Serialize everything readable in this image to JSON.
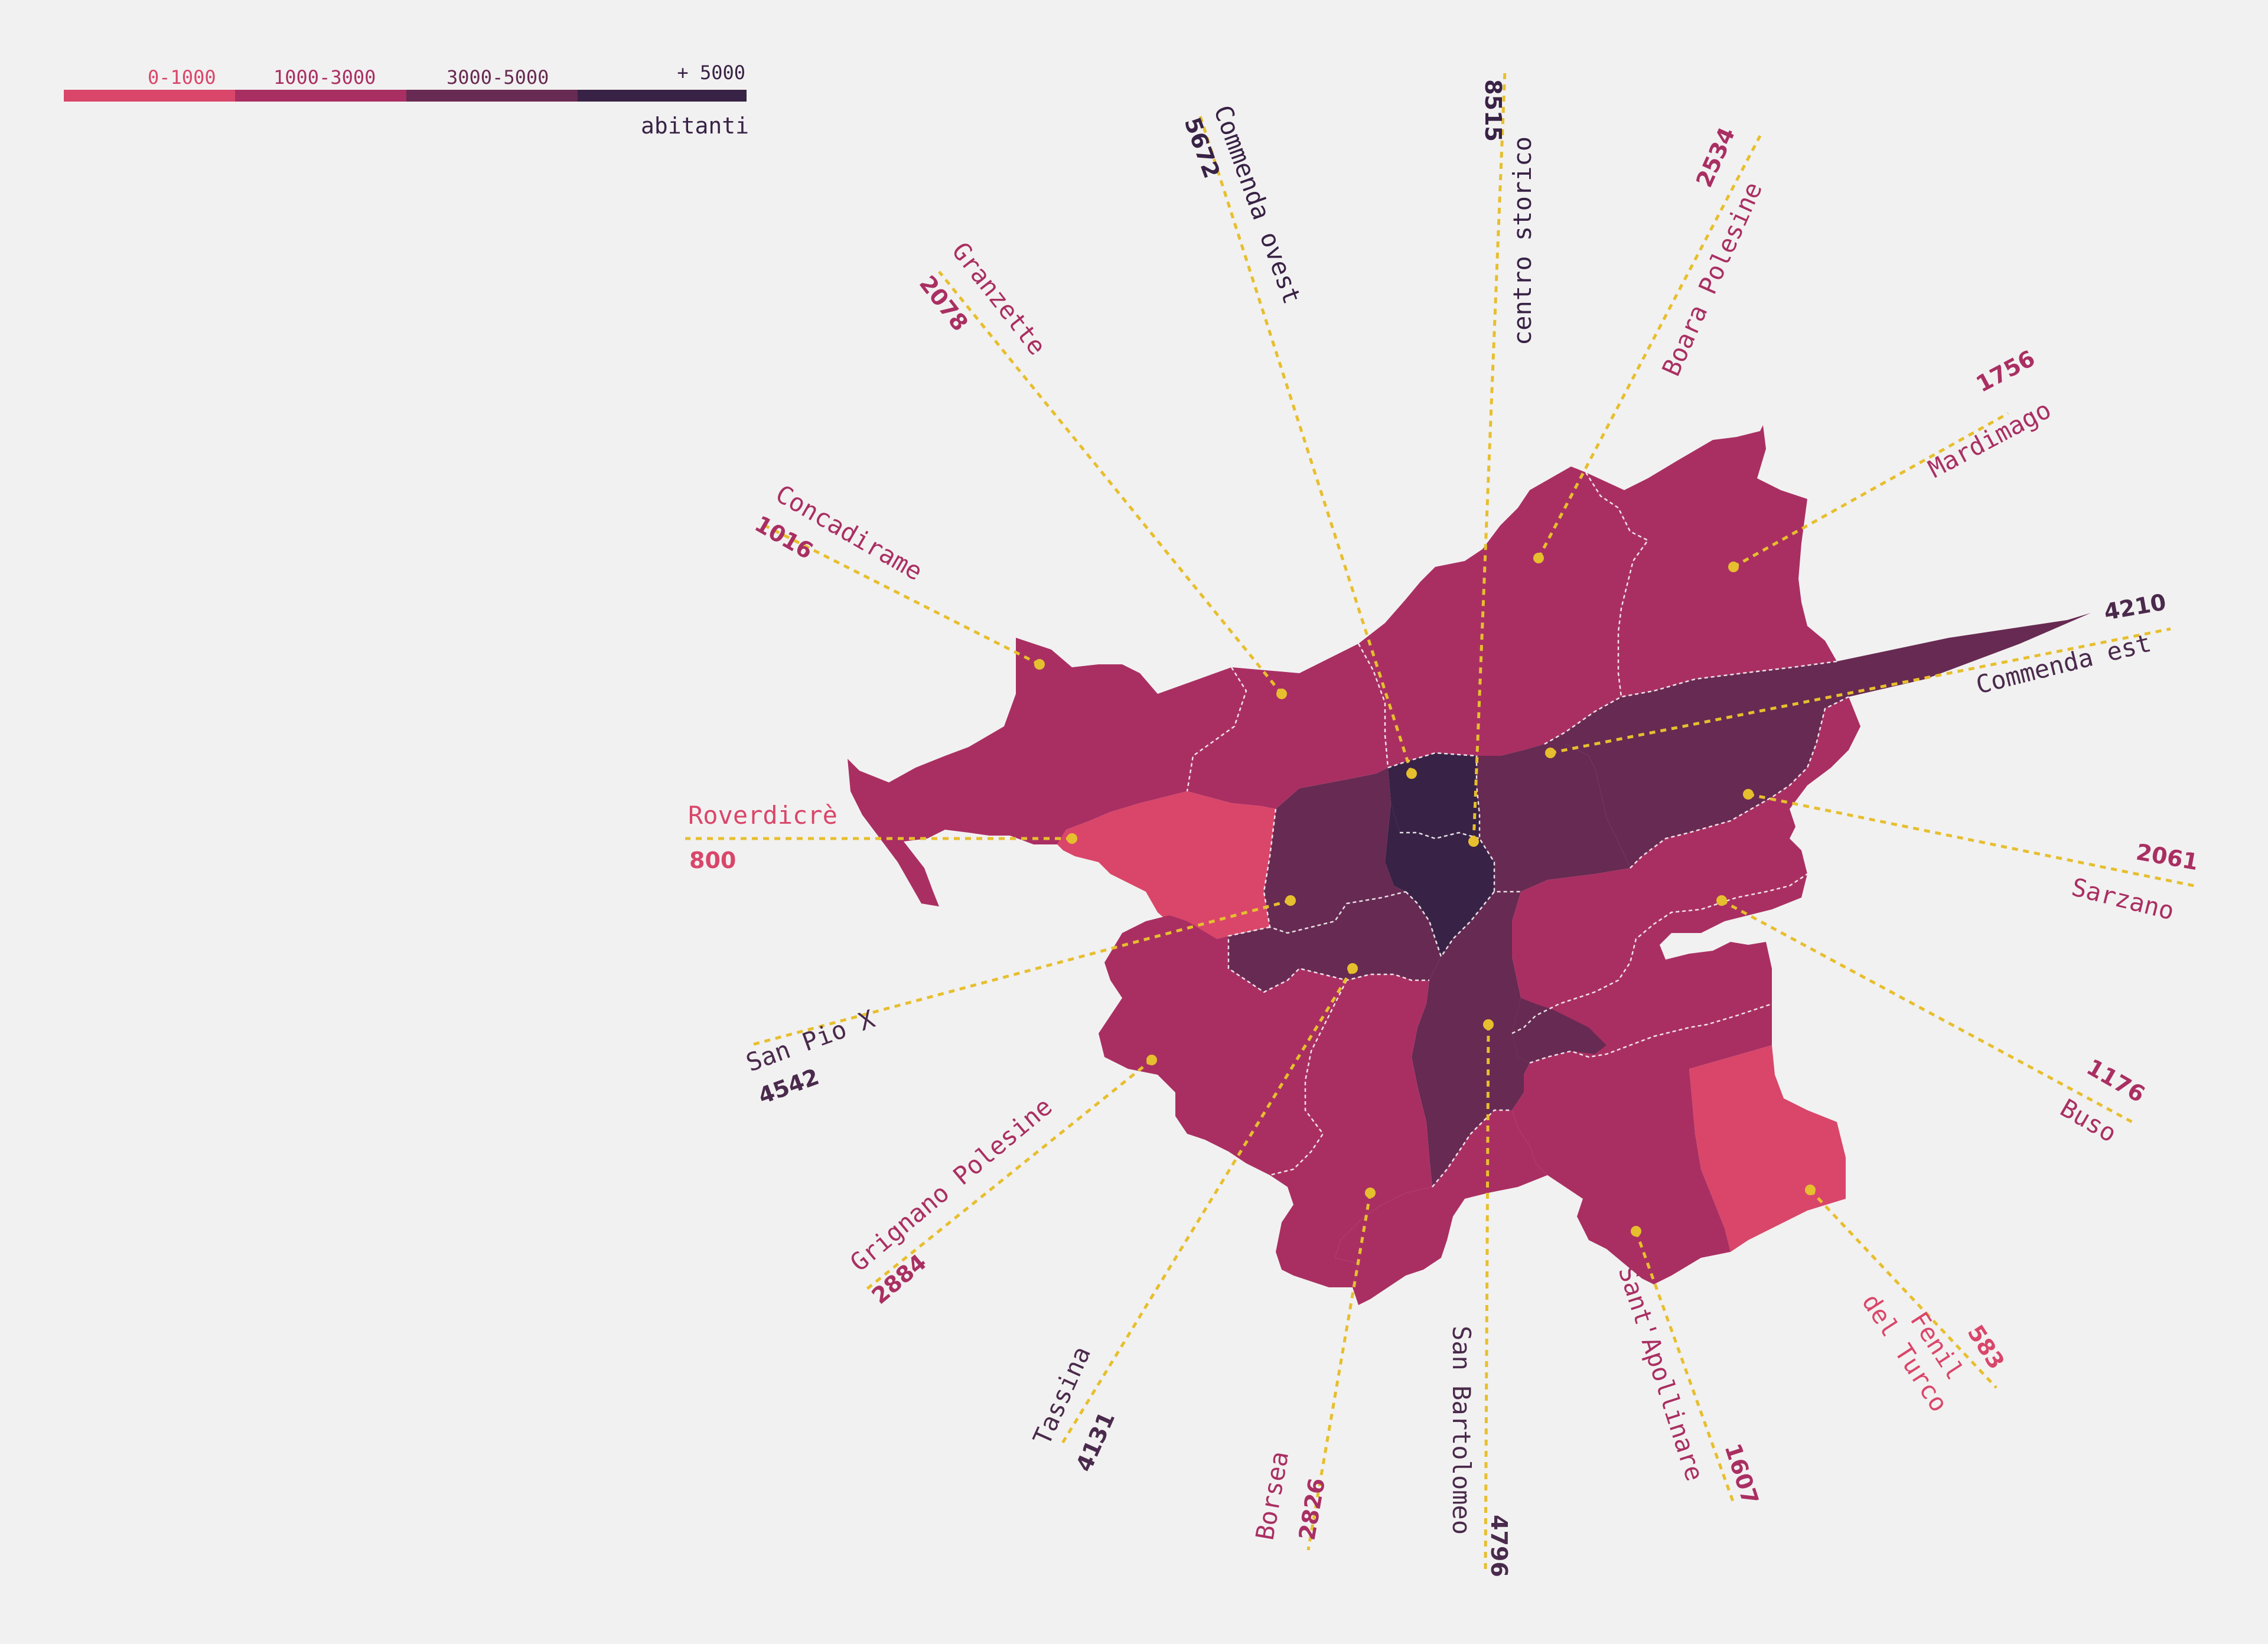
{
  "legend": {
    "classes": [
      {
        "label": "0-1000",
        "color": "#d9466a"
      },
      {
        "label": "1000-3000",
        "color": "#a92f62"
      },
      {
        "label": "3000-5000",
        "color": "#672a52"
      },
      {
        "label": "+ 5000",
        "color": "#382245"
      }
    ],
    "unit": "abitanti"
  },
  "colors": {
    "background": "#f2f1f1",
    "leader": "#e6bf2e",
    "border": "#ffffff"
  },
  "districts": [
    {
      "id": "commenda-ovest",
      "name": "Commenda ovest",
      "value": "5672",
      "class": 3
    },
    {
      "id": "centro-storico",
      "name": "centro storico",
      "value": "8515",
      "class": 3
    },
    {
      "id": "boara-polesine",
      "name": "Boara Polesine",
      "value": "2534",
      "class": 1
    },
    {
      "id": "granzette",
      "name": "Granzette",
      "value": "2078",
      "class": 1
    },
    {
      "id": "mardimago",
      "name": "Mardimago",
      "value": "1756",
      "class": 1
    },
    {
      "id": "concadirame",
      "name": "Concadirame",
      "value": "1016",
      "class": 1
    },
    {
      "id": "commenda-est",
      "name": "Commenda est",
      "value": "4210",
      "class": 2
    },
    {
      "id": "roverdicre",
      "name": "Roverdicrè",
      "value": "800",
      "class": 0
    },
    {
      "id": "sarzano",
      "name": "Sarzano",
      "value": "2061",
      "class": 1
    },
    {
      "id": "san-pio-x",
      "name": "San Pio X",
      "value": "4542",
      "class": 2
    },
    {
      "id": "buso",
      "name": "Buso",
      "value": "1176",
      "class": 1
    },
    {
      "id": "grignano-polesine",
      "name": "Grignano Polesine",
      "value": "2884",
      "class": 1
    },
    {
      "id": "fenil-del-turco",
      "name": "Fenil del Turco",
      "name_lines": [
        "Fenil",
        "del Turco"
      ],
      "value": "583",
      "class": 0
    },
    {
      "id": "tassina",
      "name": "Tassina",
      "value": "4131",
      "class": 2
    },
    {
      "id": "borsea",
      "name": "Borsea",
      "value": "2826",
      "class": 1
    },
    {
      "id": "san-bartolomeo",
      "name": "San Bartolomeo",
      "value": "4796",
      "class": 2
    },
    {
      "id": "sant-apollinare",
      "name": "Sant'Apollinare",
      "value": "1607",
      "class": 1
    }
  ]
}
